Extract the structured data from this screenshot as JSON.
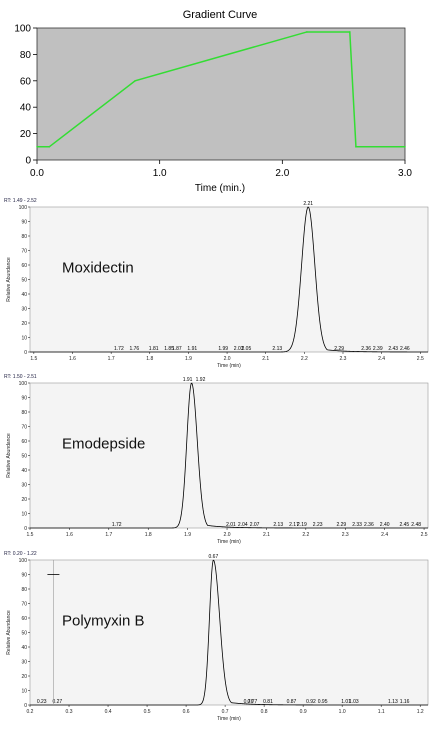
{
  "chart_data": [
    {
      "type": "line",
      "title": "Gradient Curve",
      "xlabel": "Time (min.)",
      "ylabel": "",
      "xlim": [
        0.0,
        3.0
      ],
      "ylim": [
        0,
        100
      ],
      "x_ticks": [
        "0.0",
        "1.0",
        "2.0",
        "3.0"
      ],
      "y_ticks": [
        "0",
        "20",
        "40",
        "60",
        "80",
        "100"
      ],
      "background": "#c0c0c0",
      "line_color": "#33dd33",
      "grid": false,
      "series": [
        {
          "x": [
            0.0,
            0.1,
            0.8,
            2.2,
            2.55,
            2.6,
            3.0
          ],
          "y": [
            10,
            10,
            60,
            97,
            97,
            10,
            10
          ]
        }
      ]
    },
    {
      "type": "line",
      "annotation": "Moxidectin",
      "rt_label": "RT: 1.49 - 2.52",
      "xlabel": "Time (min)",
      "ylabel": "Relative Abundance",
      "xlim": [
        1.49,
        2.52
      ],
      "ylim": [
        0,
        100
      ],
      "x_ticks": [
        "1.5",
        "1.6",
        "1.7",
        "1.8",
        "1.9",
        "2.0",
        "2.1",
        "2.2",
        "2.3",
        "2.4",
        "2.5"
      ],
      "y_ticks": [
        "0",
        "10",
        "20",
        "30",
        "40",
        "50",
        "60",
        "70",
        "80",
        "90",
        "100"
      ],
      "peak": {
        "rt": 2.21,
        "width": 0.017,
        "height": 100,
        "tail": 1.0
      },
      "peak_labels": [
        {
          "x": 1.72,
          "text": "1.72"
        },
        {
          "x": 1.76,
          "text": "1.76"
        },
        {
          "x": 1.81,
          "text": "1.81"
        },
        {
          "x": 1.85,
          "text": "1.85"
        },
        {
          "x": 1.87,
          "text": "1.87"
        },
        {
          "x": 1.91,
          "text": "1.91"
        },
        {
          "x": 1.99,
          "text": "1.99"
        },
        {
          "x": 2.03,
          "text": "2.03"
        },
        {
          "x": 2.05,
          "text": "2.05"
        },
        {
          "x": 2.13,
          "text": "2.13"
        },
        {
          "x": 2.29,
          "text": "2.29"
        },
        {
          "x": 2.36,
          "text": "2.36"
        },
        {
          "x": 2.39,
          "text": "2.39"
        },
        {
          "x": 2.43,
          "text": "2.43"
        },
        {
          "x": 2.46,
          "text": "2.46"
        }
      ],
      "apex_labels": [
        {
          "x": 2.21,
          "text": "2.21"
        }
      ]
    },
    {
      "type": "line",
      "annotation": "Emodepside",
      "rt_label": "RT: 1.50 - 2.51",
      "xlabel": "Time (min)",
      "ylabel": "Relative Abundance",
      "xlim": [
        1.5,
        2.51
      ],
      "ylim": [
        0,
        100
      ],
      "x_ticks": [
        "1.5",
        "1.6",
        "1.7",
        "1.8",
        "1.9",
        "2.0",
        "2.1",
        "2.2",
        "2.3",
        "2.4",
        "2.5"
      ],
      "y_ticks": [
        "0",
        "10",
        "20",
        "30",
        "40",
        "50",
        "60",
        "70",
        "80",
        "90",
        "100"
      ],
      "peak": {
        "rt": 1.91,
        "width": 0.012,
        "height": 100,
        "tail": 1.2
      },
      "peak_labels": [
        {
          "x": 1.72,
          "text": "1.72"
        },
        {
          "x": 2.01,
          "text": "2.01"
        },
        {
          "x": 2.04,
          "text": "2.04"
        },
        {
          "x": 2.07,
          "text": "2.07"
        },
        {
          "x": 2.13,
          "text": "2.13"
        },
        {
          "x": 2.17,
          "text": "2.17"
        },
        {
          "x": 2.19,
          "text": "2.19"
        },
        {
          "x": 2.23,
          "text": "2.23"
        },
        {
          "x": 2.29,
          "text": "2.29"
        },
        {
          "x": 2.33,
          "text": "2.33"
        },
        {
          "x": 2.36,
          "text": "2.36"
        },
        {
          "x": 2.4,
          "text": "2.40"
        },
        {
          "x": 2.45,
          "text": "2.45"
        },
        {
          "x": 2.48,
          "text": "2.48"
        }
      ],
      "apex_labels": [
        {
          "x": 1.91,
          "text": "1.91"
        },
        {
          "x": 1.92,
          "text": "1.92"
        }
      ]
    },
    {
      "type": "line",
      "annotation": "Polymyxin B",
      "rt_label": "RT: 0.20 - 1.22",
      "xlabel": "Time (min)",
      "ylabel": "Relative Abundance",
      "xlim": [
        0.2,
        1.22
      ],
      "ylim": [
        0,
        100
      ],
      "x_ticks": [
        "0.2",
        "0.3",
        "0.4",
        "0.5",
        "0.6",
        "0.7",
        "0.8",
        "0.9",
        "1.0",
        "1.1",
        "1.2"
      ],
      "y_ticks": [
        "0",
        "10",
        "20",
        "30",
        "40",
        "50",
        "60",
        "70",
        "80",
        "90",
        "100"
      ],
      "peak": {
        "rt": 0.67,
        "width": 0.01,
        "height": 100,
        "tail": 1.6
      },
      "peak_labels": [
        {
          "x": 0.23,
          "text": "0.23"
        },
        {
          "x": 0.27,
          "text": "0.27"
        },
        {
          "x": 0.76,
          "text": "0.76"
        },
        {
          "x": 0.77,
          "text": "0.77"
        },
        {
          "x": 0.81,
          "text": "0.81"
        },
        {
          "x": 0.87,
          "text": "0.87"
        },
        {
          "x": 0.92,
          "text": "0.92"
        },
        {
          "x": 0.95,
          "text": "0.95"
        },
        {
          "x": 1.01,
          "text": "1.01"
        },
        {
          "x": 1.03,
          "text": "1.03"
        },
        {
          "x": 1.13,
          "text": "1.13"
        },
        {
          "x": 1.16,
          "text": "1.16"
        }
      ],
      "apex_labels": [
        {
          "x": 0.67,
          "text": "0.67"
        }
      ],
      "cursor": {
        "x": 0.26,
        "y": 90
      }
    }
  ]
}
